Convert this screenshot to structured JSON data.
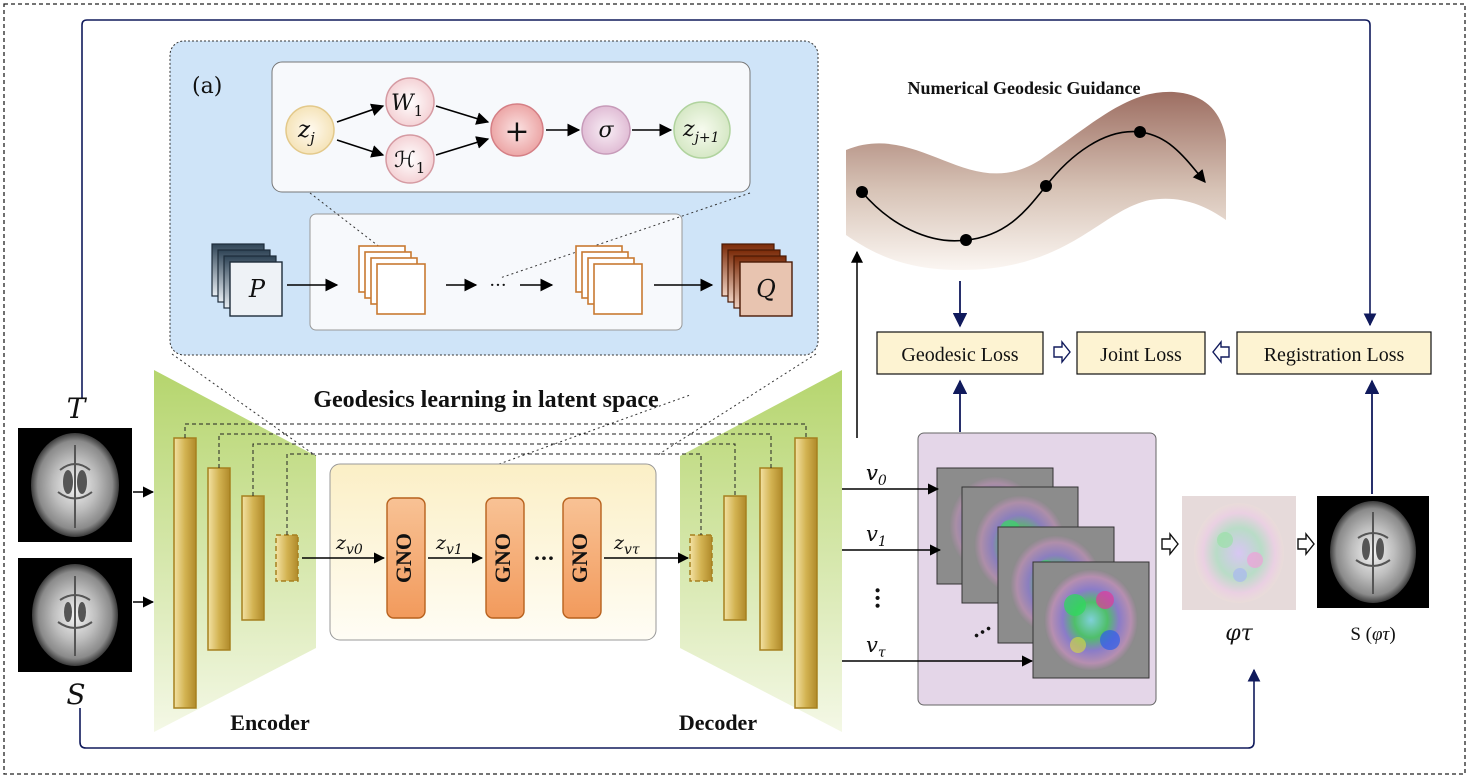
{
  "panel_a_label": "(a)",
  "heading_latent": "Geodesics learning in latent space",
  "heading_guidance": "Numerical Geodesic Guidance",
  "encoder_label": "Encoder",
  "decoder_label": "Decoder",
  "inputs": {
    "target": "T",
    "source": "S"
  },
  "gno_label": "GNO",
  "dots": "···",
  "latent_vars": {
    "z_v0": "v0",
    "z_v1": "v1",
    "z_vtau": "vτ"
  },
  "inner_block": {
    "z_j_sub": "j",
    "w_sub": "1",
    "h_sub": "1",
    "plus": "+",
    "sigma": "σ",
    "z_j1_sub": "j+1"
  },
  "lift": {
    "p": "P",
    "q": "Q"
  },
  "velocities": [
    "v0",
    "v1",
    "vτ"
  ],
  "losses": {
    "geodesic": "Geodesic Loss",
    "joint": "Joint  Loss",
    "registration": "Registration Loss"
  },
  "phi_label": "φτ",
  "warped_label_prefix": "S (",
  "warped_label_suffix": ")",
  "colors": {
    "accent_navy": "#101a5c",
    "blue_panel": "#cfe4f8",
    "latent_panel": "#fdf5dc",
    "field_panel": "#e4d6e8",
    "gno_fill": "#f6b27e",
    "loss_fill": "#fdf3d2",
    "trapezoid": "#bedc7c",
    "bar_gold": "#d8b84c"
  }
}
